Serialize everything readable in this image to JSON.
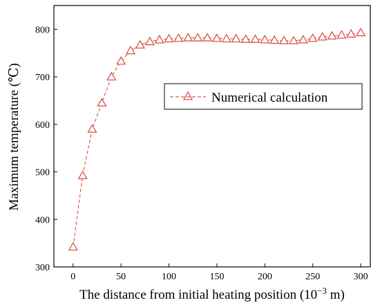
{
  "chart_data": {
    "type": "line",
    "xlabel": "The distance from initial heating position (10",
    "xlabel_exp": "−3",
    "xlabel_unit": " m)",
    "ylabel": "Maximum temperature (℃)",
    "xlim": [
      -20,
      310
    ],
    "ylim": [
      300,
      850
    ],
    "xticks": [
      0,
      50,
      100,
      150,
      200,
      250,
      300
    ],
    "yticks": [
      300,
      400,
      500,
      600,
      700,
      800
    ],
    "legend_position": "center-right",
    "series": [
      {
        "name": "Numerical calculation",
        "color": "#d9534a",
        "marker": "triangle-open",
        "line_style": "dashed",
        "x": [
          0,
          10,
          20,
          30,
          40,
          50,
          60,
          70,
          80,
          90,
          100,
          110,
          120,
          130,
          140,
          150,
          160,
          170,
          180,
          190,
          200,
          210,
          220,
          230,
          240,
          250,
          260,
          270,
          280,
          290,
          300
        ],
        "y": [
          342,
          492,
          590,
          645,
          700,
          733,
          755,
          767,
          774,
          778,
          780,
          781,
          782,
          782,
          782,
          781,
          780,
          780,
          779,
          779,
          778,
          777,
          776,
          776,
          778,
          781,
          784,
          786,
          788,
          790,
          793
        ]
      }
    ]
  }
}
